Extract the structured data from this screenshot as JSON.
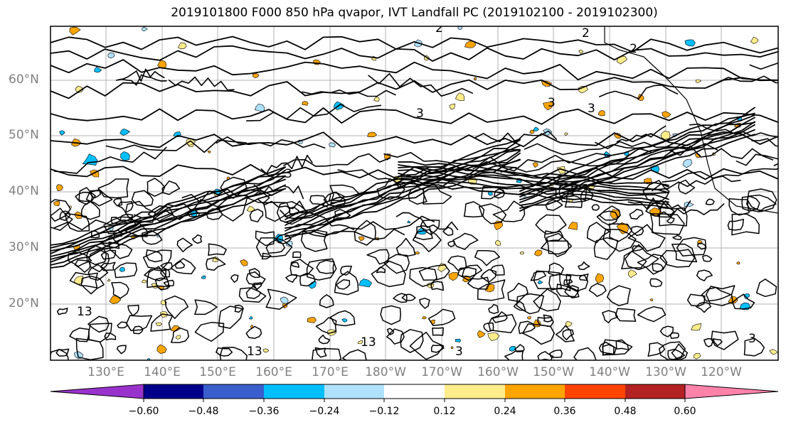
{
  "title": "2019101800 F000 850 hPa qvapor, IVT Landfall PC (2019102100 - 2019102300)",
  "map": {
    "projection": "PlateCarree",
    "central_longitude": 180,
    "lon_range": [
      "120°E",
      "115°W"
    ],
    "lat_range": [
      "10°N",
      "70°N"
    ],
    "gridlines": true,
    "coastlines": true
  },
  "lat_labels": [
    "60°N",
    "50°N",
    "40°N",
    "30°N",
    "20°N"
  ],
  "lon_labels": [
    "130°E",
    "140°E",
    "150°E",
    "160°E",
    "170°E",
    "180°W",
    "170°W",
    "160°W",
    "150°W",
    "140°W",
    "130°W",
    "120°W"
  ],
  "contour_labels": [
    "2",
    "2",
    "2",
    "3",
    "3",
    "3",
    "3",
    "13",
    "13",
    "13",
    "3",
    "3"
  ],
  "colorbar": {
    "orientation": "horizontal",
    "extend": "both",
    "tick_labels": [
      "−0.60",
      "−0.48",
      "−0.36",
      "−0.24",
      "−0.12",
      "0.12",
      "0.24",
      "0.36",
      "0.48",
      "0.60"
    ],
    "colors": [
      "#9932cc",
      "#00008b",
      "#3a5fcd",
      "#00bfff",
      "#b0e2ff",
      "#ffffff",
      "#ffec8b",
      "#ffa500",
      "#ff4500",
      "#b22222",
      "#ff82ab"
    ]
  },
  "chart_data": {
    "type": "heatmap",
    "field_shaded": "850 hPa qvapor",
    "field_contoured": "IVT Landfall PC",
    "levels": [
      -0.6,
      -0.48,
      -0.36,
      -0.24,
      -0.12,
      0.12,
      0.24,
      0.36,
      0.48,
      0.6
    ]
  }
}
